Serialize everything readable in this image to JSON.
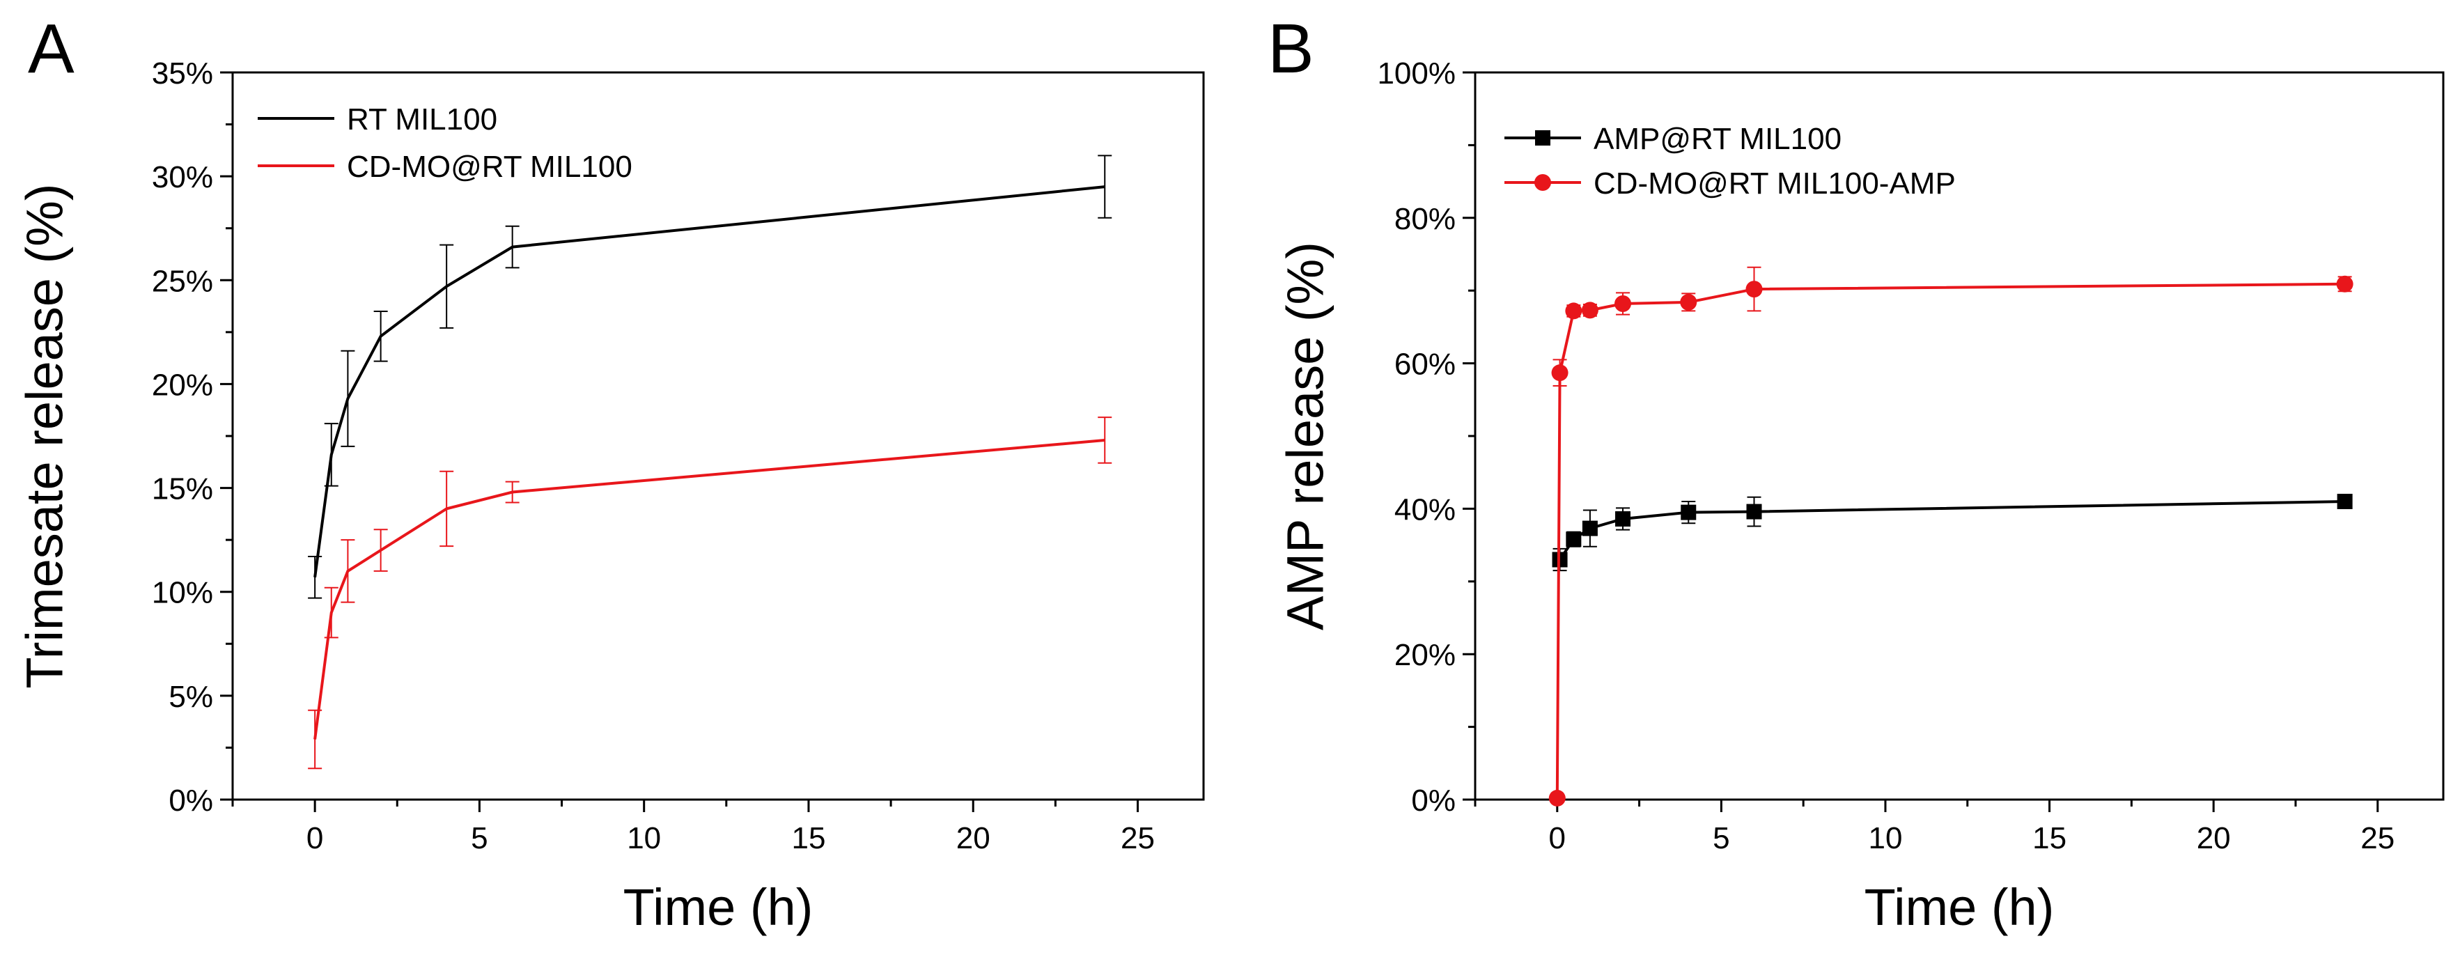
{
  "chart_data": [
    {
      "panel": "A",
      "type": "line",
      "xlabel": "Time (h)",
      "ylabel": "Trimesate release (%)",
      "xlim": [
        -2.5,
        27
      ],
      "ylim": [
        0,
        35
      ],
      "xticks": [
        0,
        5,
        10,
        15,
        20,
        25
      ],
      "yticks": [
        0,
        5,
        10,
        15,
        20,
        25,
        30,
        35
      ],
      "xtick_labels": [
        "0",
        "5",
        "10",
        "15",
        "20",
        "25"
      ],
      "ytick_labels": [
        "0%",
        "5%",
        "10%",
        "15%",
        "20%",
        "25%",
        "30%",
        "35%"
      ],
      "grid": false,
      "legend_position": "top-left",
      "series": [
        {
          "name": "RT MIL100",
          "color": "#000000",
          "marker": "none",
          "x": [
            0,
            0.5,
            1,
            2,
            4,
            6,
            24
          ],
          "y": [
            10.7,
            16.6,
            19.3,
            22.3,
            24.7,
            26.6,
            29.5
          ],
          "err": [
            1.0,
            1.5,
            2.3,
            1.2,
            2.0,
            1.0,
            1.5
          ]
        },
        {
          "name": "CD-MO@RT MIL100",
          "color": "#e8161b",
          "marker": "none",
          "x": [
            0,
            0.5,
            1,
            2,
            4,
            6,
            24
          ],
          "y": [
            2.9,
            9.0,
            11.0,
            12.0,
            14.0,
            14.8,
            17.3
          ],
          "err": [
            1.4,
            1.2,
            1.5,
            1.0,
            1.8,
            0.5,
            1.1
          ]
        }
      ]
    },
    {
      "panel": "B",
      "type": "line",
      "xlabel": "Time (h)",
      "ylabel": "AMP release (%)",
      "xlim": [
        -2.5,
        27
      ],
      "ylim": [
        0,
        100
      ],
      "xticks": [
        0,
        5,
        10,
        15,
        20,
        25
      ],
      "yticks": [
        0,
        20,
        40,
        60,
        80,
        100
      ],
      "xtick_labels": [
        "0",
        "5",
        "10",
        "15",
        "20",
        "25"
      ],
      "ytick_labels": [
        "0%",
        "20%",
        "40%",
        "60%",
        "80%",
        "100%"
      ],
      "grid": false,
      "legend_position": "top-left",
      "series": [
        {
          "name": "AMP@RT MIL100",
          "color": "#000000",
          "marker": "square",
          "x": [
            0.08,
            0.5,
            1,
            2,
            4,
            6,
            24
          ],
          "y": [
            33.0,
            35.8,
            37.3,
            38.6,
            39.5,
            39.6,
            41.0
          ],
          "err": [
            1.5,
            1.0,
            2.5,
            1.5,
            1.5,
            2.0,
            0.8
          ]
        },
        {
          "name": "CD-MO@RT MIL100-AMP",
          "color": "#e8161b",
          "marker": "circle",
          "x": [
            0,
            0.08,
            0.5,
            1,
            2,
            4,
            6,
            24
          ],
          "y": [
            0.2,
            58.7,
            67.2,
            67.3,
            68.2,
            68.4,
            70.2,
            70.9
          ],
          "err": [
            0,
            1.8,
            0.8,
            0.8,
            1.5,
            1.2,
            3.0,
            1.0
          ]
        }
      ]
    }
  ]
}
